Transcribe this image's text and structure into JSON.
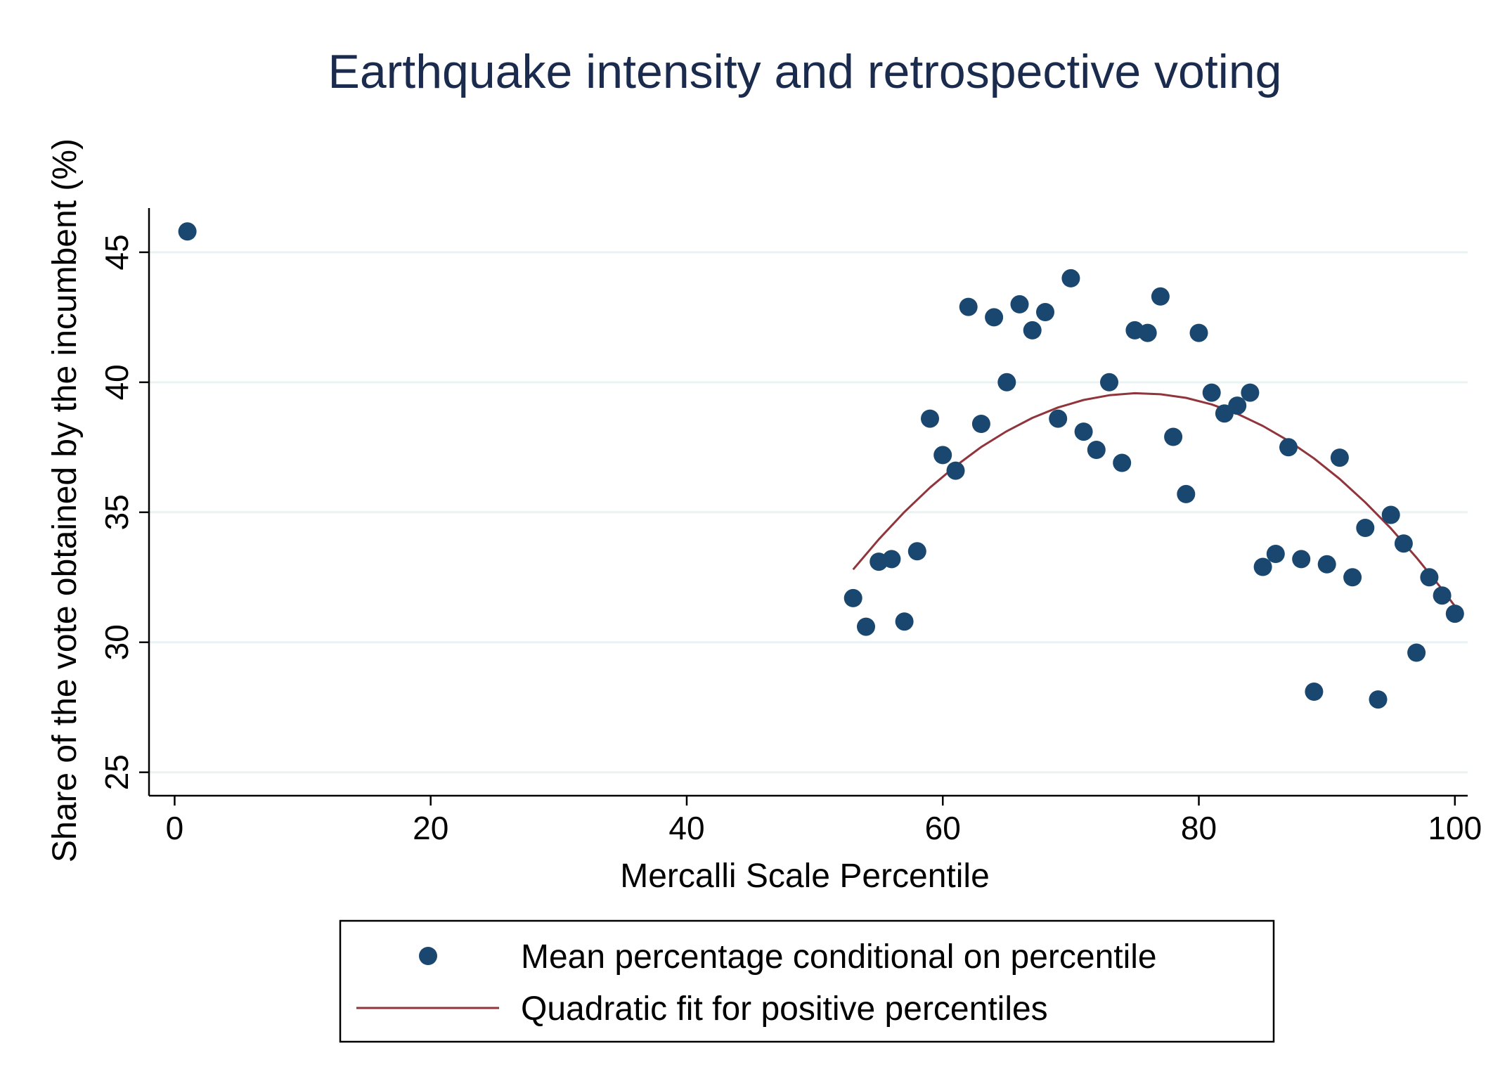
{
  "chart_data": {
    "type": "scatter",
    "title": "Earthquake intensity and retrospective voting",
    "xlabel": "Mercalli Scale Percentile",
    "ylabel": "Share of the vote obtained by the incumbent (%)",
    "xlim": [
      -2,
      101
    ],
    "ylim": [
      24.1,
      46.7
    ],
    "xticks": [
      0,
      20,
      40,
      60,
      80,
      100
    ],
    "yticks": [
      25,
      30,
      35,
      40,
      45
    ],
    "grid": true,
    "legend_position": "bottom",
    "colors": {
      "points": "#1a476f",
      "fit": "#90353b",
      "grid": "#eaf2f3",
      "title": "#1a2b4d"
    },
    "series": [
      {
        "name": "Mean percentage conditional on percentile",
        "kind": "scatter",
        "x": [
          1,
          53,
          54,
          55,
          56,
          57,
          58,
          59,
          60,
          61,
          62,
          63,
          64,
          65,
          66,
          67,
          68,
          69,
          70,
          71,
          72,
          73,
          74,
          75,
          76,
          77,
          78,
          79,
          80,
          81,
          82,
          83,
          84,
          85,
          86,
          87,
          88,
          89,
          90,
          91,
          92,
          93,
          94,
          95,
          96,
          97,
          98,
          99,
          100
        ],
        "y": [
          45.8,
          31.7,
          30.6,
          33.1,
          33.2,
          30.8,
          33.5,
          38.6,
          37.2,
          36.6,
          42.9,
          38.4,
          42.5,
          40.0,
          43.0,
          42.0,
          42.7,
          38.6,
          44.0,
          38.1,
          37.4,
          40.0,
          36.9,
          42.0,
          41.9,
          43.3,
          37.9,
          35.7,
          41.9,
          39.6,
          38.8,
          39.1,
          39.6,
          32.9,
          33.4,
          37.5,
          33.2,
          28.1,
          33.0,
          37.1,
          32.5,
          34.4,
          27.8,
          34.9,
          33.8,
          29.6,
          32.5,
          31.8,
          31.1
        ]
      },
      {
        "name": "Quadratic fit for positive percentiles",
        "kind": "line",
        "x": [
          53,
          55,
          57,
          59,
          61,
          63,
          65,
          67,
          69,
          71,
          73,
          75,
          77,
          79,
          81,
          83,
          85,
          87,
          89,
          91,
          93,
          95,
          97,
          99,
          100
        ],
        "y": [
          32.8,
          33.96,
          35.01,
          35.95,
          36.78,
          37.51,
          38.12,
          38.63,
          39.03,
          39.32,
          39.5,
          39.58,
          39.54,
          39.4,
          39.15,
          38.79,
          38.32,
          37.75,
          37.07,
          36.28,
          35.38,
          34.38,
          33.26,
          32.04,
          31.39
        ]
      }
    ]
  }
}
